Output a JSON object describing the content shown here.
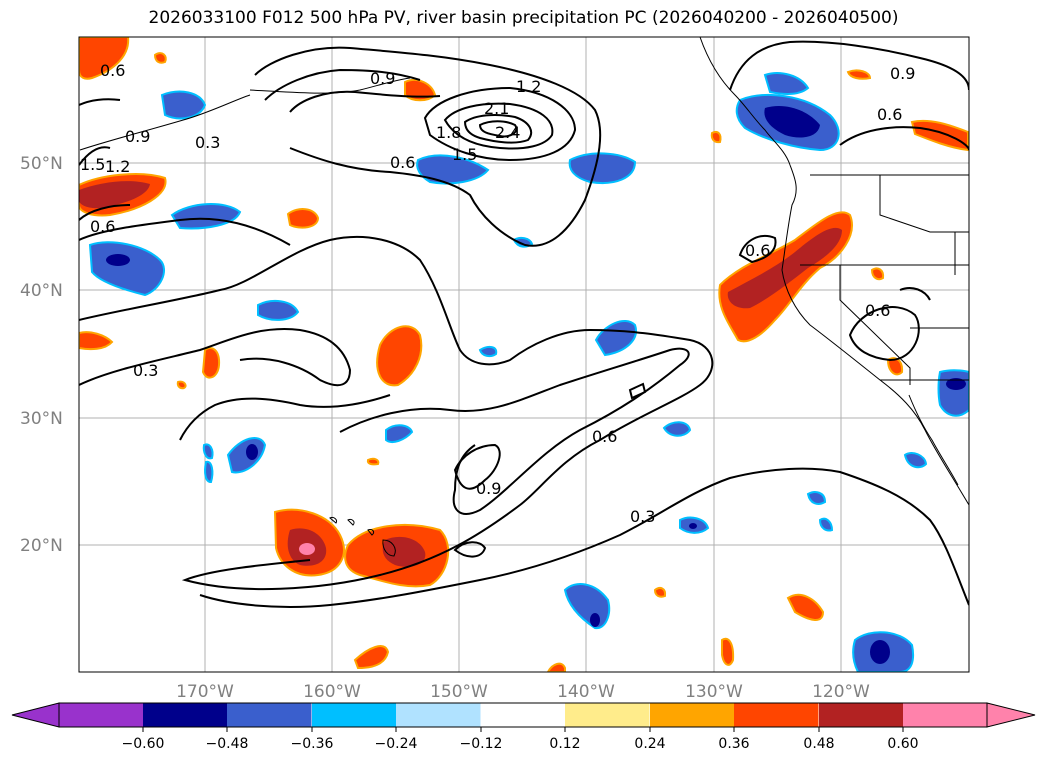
{
  "title": "2026033100 F012 500 hPa PV, river basin precipitation PC (2026040200 - 2026040500)",
  "lat_labels": [
    "50°N",
    "40°N",
    "30°N",
    "20°N"
  ],
  "lon_labels": [
    "170°W",
    "160°W",
    "150°W",
    "140°W",
    "130°W",
    "120°W"
  ],
  "contour_labels": [
    "0.3",
    "0.6",
    "0.9",
    "1.2",
    "1.5",
    "1.8",
    "2.1",
    "2.4"
  ],
  "colorbar": {
    "ticks": [
      "−0.60",
      "−0.48",
      "−0.36",
      "−0.24",
      "−0.12",
      "0.12",
      "0.24",
      "0.36",
      "0.48",
      "0.60"
    ],
    "colors": [
      "#9932cc",
      "#00008b",
      "#3a5fcd",
      "#00bfff",
      "#b0e2ff",
      "#ffffff",
      "#ffec8b",
      "#ffa500",
      "#ff4500",
      "#b22222",
      "#ff82ab"
    ]
  }
}
